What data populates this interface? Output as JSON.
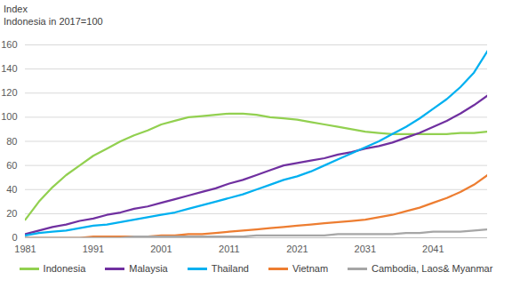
{
  "chart_data": {
    "type": "line",
    "ylabel": "Index",
    "subtitle": "Indonesia in 2017=100",
    "x": [
      1981,
      1983,
      1985,
      1987,
      1989,
      1991,
      1993,
      1995,
      1997,
      1999,
      2001,
      2003,
      2005,
      2007,
      2009,
      2011,
      2013,
      2015,
      2017,
      2019,
      2021,
      2023,
      2025,
      2027,
      2029,
      2031,
      2033,
      2035,
      2037,
      2039,
      2041,
      2043,
      2045,
      2047,
      2049
    ],
    "series": [
      {
        "name": "Indonesia",
        "color": "#92d050",
        "values": [
          15,
          30,
          42,
          52,
          60,
          68,
          74,
          80,
          85,
          89,
          94,
          97,
          100,
          101,
          102,
          103,
          103,
          102,
          100,
          99,
          98,
          96,
          94,
          92,
          90,
          88,
          87,
          86,
          86,
          86,
          86,
          86,
          87,
          87,
          88
        ]
      },
      {
        "name": "Malaysia",
        "color": "#7030a0",
        "values": [
          3,
          6,
          9,
          11,
          14,
          16,
          19,
          21,
          24,
          26,
          29,
          32,
          35,
          38,
          41,
          45,
          48,
          52,
          56,
          60,
          62,
          64,
          66,
          69,
          71,
          74,
          76,
          79,
          83,
          87,
          92,
          97,
          103,
          110,
          118
        ]
      },
      {
        "name": "Thailand",
        "color": "#00b0f0",
        "values": [
          2,
          4,
          5,
          6,
          8,
          10,
          11,
          13,
          15,
          17,
          19,
          21,
          24,
          27,
          30,
          33,
          36,
          40,
          44,
          48,
          51,
          55,
          60,
          65,
          70,
          75,
          80,
          86,
          92,
          99,
          107,
          115,
          125,
          137,
          155
        ]
      },
      {
        "name": "Vietnam",
        "color": "#ed7d31",
        "values": [
          0,
          0,
          0,
          0,
          0,
          1,
          1,
          1,
          1,
          1,
          2,
          2,
          3,
          3,
          4,
          5,
          6,
          7,
          8,
          9,
          10,
          11,
          12,
          13,
          14,
          15,
          17,
          19,
          22,
          25,
          29,
          33,
          38,
          44,
          52
        ]
      },
      {
        "name": "Cambodia, Laos& Myanmar",
        "color": "#a6a6a6",
        "values": [
          0,
          0,
          0,
          0,
          0,
          0,
          0,
          0,
          1,
          1,
          1,
          1,
          1,
          1,
          1,
          1,
          1,
          2,
          2,
          2,
          2,
          2,
          2,
          3,
          3,
          3,
          3,
          3,
          4,
          4,
          5,
          5,
          5,
          6,
          7
        ]
      }
    ],
    "xlim": [
      1981,
      2049
    ],
    "xticks": [
      1981,
      1991,
      2001,
      2011,
      2021,
      2031,
      2041
    ],
    "ylim": [
      0,
      160
    ],
    "yticks": [
      0,
      20,
      40,
      60,
      80,
      100,
      120,
      140,
      160
    ],
    "grid": true,
    "legend": "bottom"
  }
}
